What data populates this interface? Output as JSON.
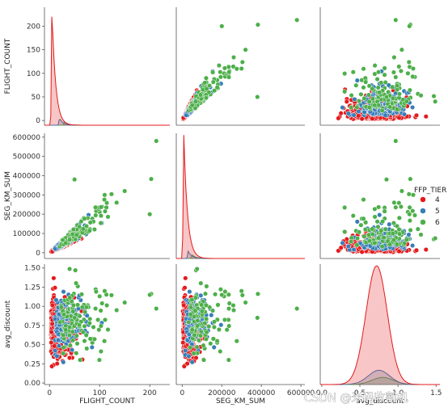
{
  "chart_data": {
    "type": "scatter",
    "kind": "pairplot",
    "variables": [
      "FLIGHT_COUNT",
      "SEG_KM_SUM",
      "avg_discount"
    ],
    "hue": "FFP_TIER",
    "hue_levels": [
      {
        "label": "4",
        "color": "#e41a1c"
      },
      {
        "label": "5",
        "color": "#377eb8"
      },
      {
        "label": "6",
        "color": "#4daf4a"
      }
    ],
    "axes": {
      "FLIGHT_COUNT": {
        "range": [
          -10,
          240
        ],
        "ticks": [
          "0",
          "100",
          "200"
        ],
        "ticks_y": [
          "0",
          "50",
          "100",
          "150",
          "200"
        ]
      },
      "SEG_KM_SUM": {
        "range": [
          -30000,
          620000
        ],
        "ticks": [
          "0",
          "200000",
          "400000",
          "600000"
        ],
        "ticks_y": [
          "0",
          "100000",
          "200000",
          "300000",
          "400000",
          "500000",
          "600000"
        ]
      },
      "avg_discount": {
        "range": [
          -0.02,
          1.55
        ],
        "ticks": [
          "0.00",
          "0.25",
          "0.50",
          "0.75",
          "1.00",
          "1.25",
          "1.50"
        ],
        "ticks_x": [
          "0.0",
          "0.5",
          "1.0",
          "1.5"
        ]
      }
    },
    "diagonal": "kde",
    "kde": {
      "FLIGHT_COUNT": {
        "4": {
          "peak_x": 5,
          "peak_density": 1.0
        },
        "5": {
          "peak_x": 20,
          "peak_density": 0.06
        },
        "6": {
          "peak_x": 30,
          "peak_density": 0.03
        }
      },
      "SEG_KM_SUM": {
        "4": {
          "peak_x": 8000,
          "peak_density": 1.0
        },
        "5": {
          "peak_x": 30000,
          "peak_density": 0.06
        },
        "6": {
          "peak_x": 50000,
          "peak_density": 0.03
        }
      },
      "avg_discount": {
        "4": {
          "peak_x": 0.72,
          "peak_density": 1.0
        },
        "5": {
          "peak_x": 0.75,
          "peak_density": 0.12
        },
        "6": {
          "peak_x": 0.8,
          "peak_density": 0.06
        }
      }
    },
    "notable_points": [
      {
        "FLIGHT_COUNT": 213,
        "SEG_KM_SUM": 580000,
        "avg_discount": 0.97,
        "tier": "6"
      },
      {
        "FLIGHT_COUNT": 200,
        "SEG_KM_SUM": 200000,
        "avg_discount": 1.15,
        "tier": "6"
      },
      {
        "FLIGHT_COUNT": 150,
        "SEG_KM_SUM": 320000,
        "avg_discount": 1.05,
        "tier": "6"
      },
      {
        "FLIGHT_COUNT": 50,
        "SEG_KM_SUM": 380000,
        "avg_discount": 0.85,
        "tier": "6"
      },
      {
        "FLIGHT_COUNT": 110,
        "SEG_KM_SUM": 300000,
        "avg_discount": 1.2,
        "tier": "6"
      }
    ],
    "legend": {
      "title": "FFP_TIER",
      "placement": "right"
    }
  },
  "watermark": "CSDN @米码收割机"
}
